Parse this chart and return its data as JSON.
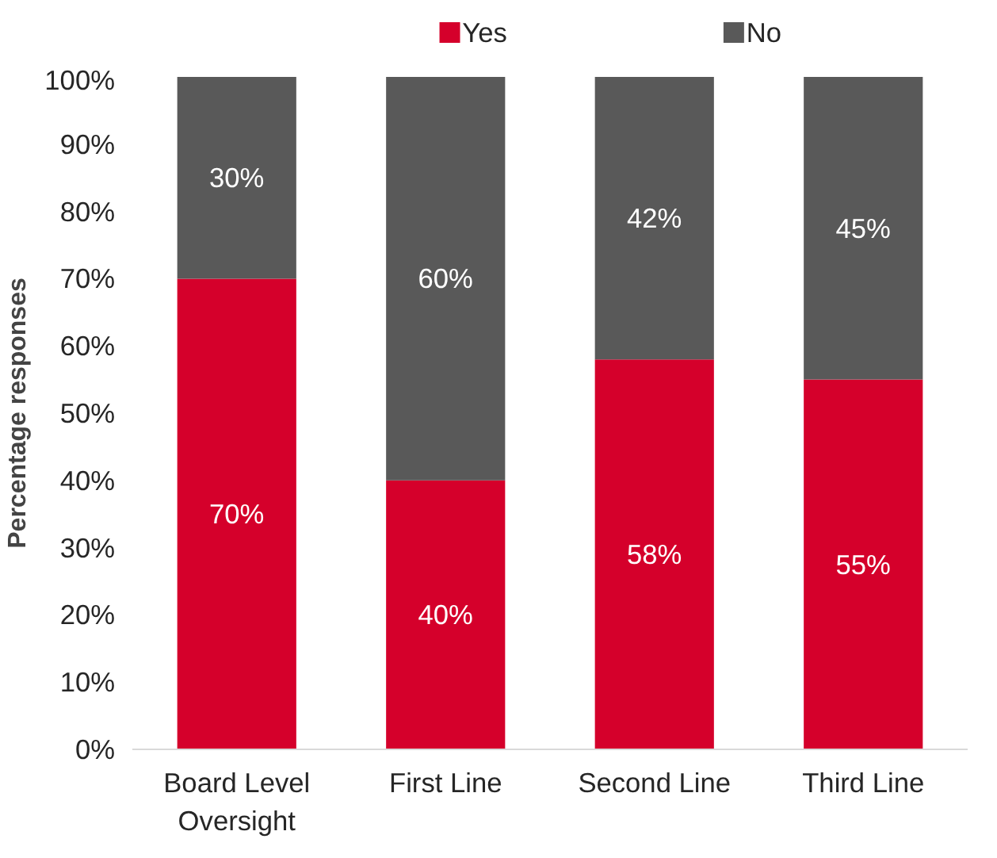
{
  "chart_data": {
    "type": "bar",
    "stacked": true,
    "ylabel": "Percentage responses",
    "categories": [
      "Board Level Oversight",
      "First Line",
      "Second Line",
      "Third Line"
    ],
    "series": [
      {
        "name": "Yes",
        "color": "#d5002b",
        "values": [
          70,
          40,
          58,
          55
        ],
        "value_labels": [
          "70%",
          "40%",
          "58%",
          "55%"
        ]
      },
      {
        "name": "No",
        "color": "#595959",
        "values": [
          30,
          60,
          42,
          45
        ],
        "value_labels": [
          "30%",
          "60%",
          "42%",
          "45%"
        ]
      }
    ],
    "ylim": [
      0,
      100
    ],
    "yticks": [
      {
        "value": 0,
        "label": "0%"
      },
      {
        "value": 10,
        "label": "10%"
      },
      {
        "value": 20,
        "label": "20%"
      },
      {
        "value": 30,
        "label": "30%"
      },
      {
        "value": 40,
        "label": "40%"
      },
      {
        "value": 50,
        "label": "50%"
      },
      {
        "value": 60,
        "label": "60%"
      },
      {
        "value": 70,
        "label": "70%"
      },
      {
        "value": 80,
        "label": "80%"
      },
      {
        "value": 90,
        "label": "90%"
      },
      {
        "value": 100,
        "label": "100%"
      }
    ],
    "grid": false,
    "legend": "top"
  }
}
